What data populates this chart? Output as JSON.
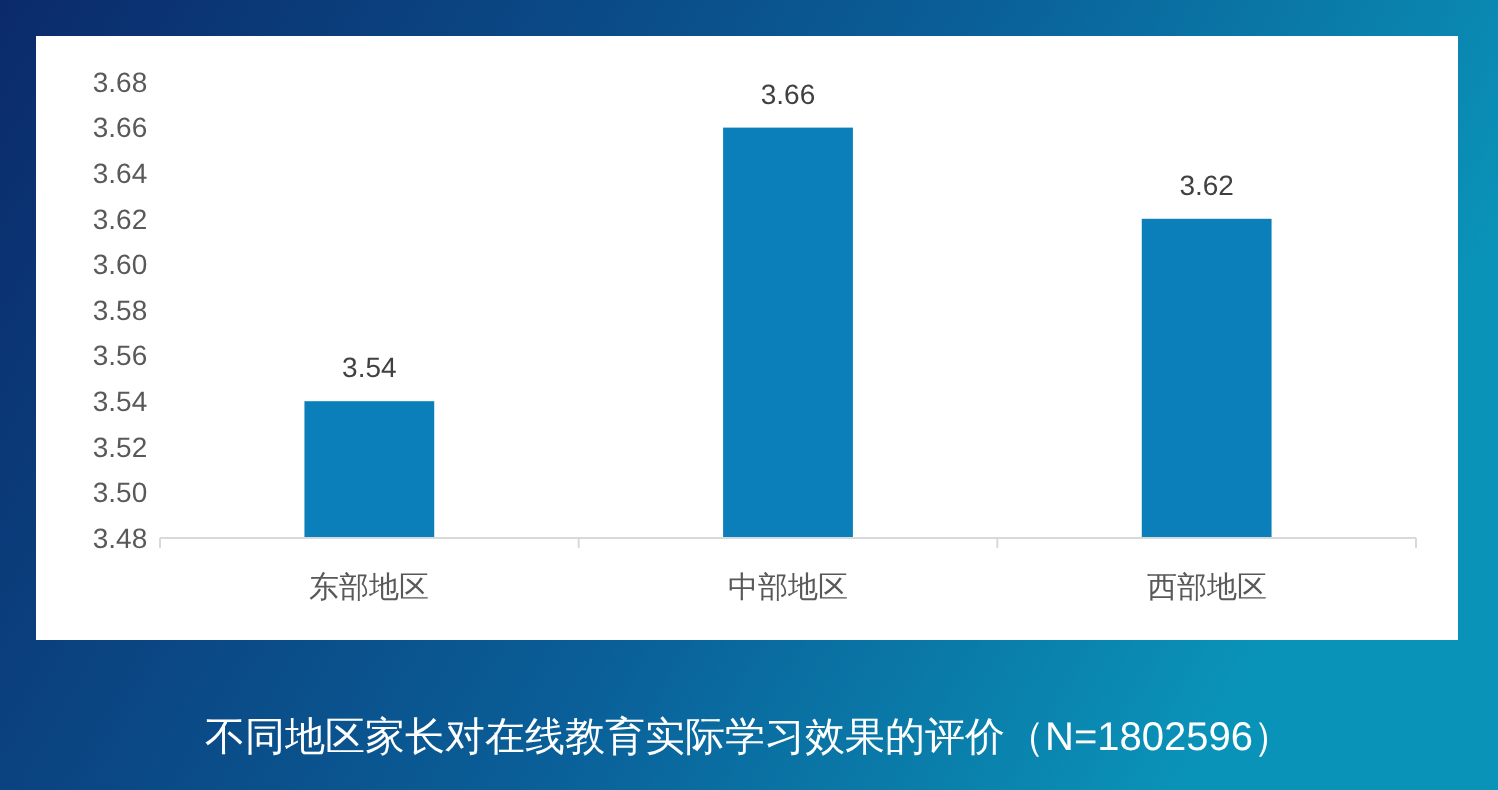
{
  "chart_data": {
    "type": "bar",
    "title": "不同地区家长对在线教育实际学习效果的评价（N=1802596）",
    "categories": [
      "东部地区",
      "中部地区",
      "西部地区"
    ],
    "values": [
      3.54,
      3.66,
      3.62
    ],
    "color": "#0b7fb9",
    "ylim": [
      3.48,
      3.68
    ],
    "yticks": [
      3.48,
      {
        "value": 3.5,
        "label": "3.50"
      },
      3.52,
      3.54,
      3.56,
      3.58,
      {
        "value": 3.6,
        "label": "3.60"
      },
      3.62,
      3.64,
      3.66,
      3.68
    ],
    "grid": false,
    "data_labels": true
  }
}
